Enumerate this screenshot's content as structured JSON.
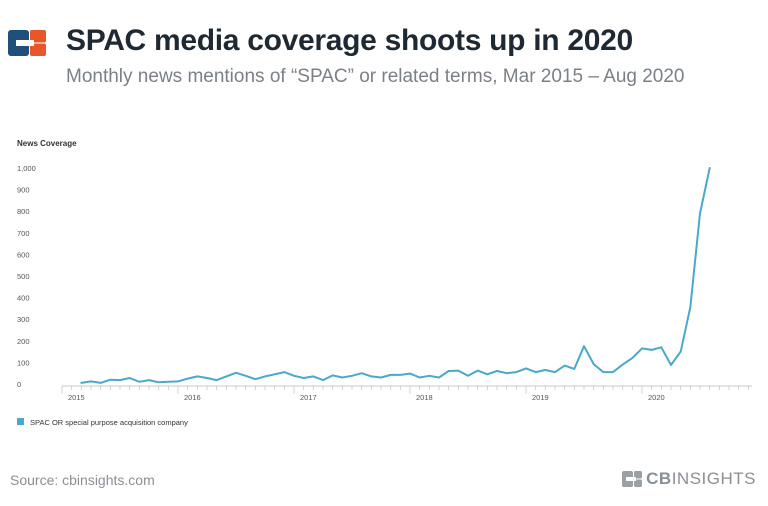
{
  "header": {
    "title": "SPAC media coverage shoots up in 2020",
    "subtitle": "Monthly news mentions of “SPAC” or related terms, Mar 2015 – Aug 2020"
  },
  "colors": {
    "line": "#4aa8c9",
    "title": "#1f2933",
    "muted": "#8a8f96",
    "logo_blue": "#1f4f7a",
    "logo_orange": "#e8572a"
  },
  "chart_data": {
    "type": "line",
    "ylabel": "News Coverage",
    "ylim": [
      0,
      1000
    ],
    "yticks": [
      "0",
      "100",
      "200",
      "300",
      "400",
      "500",
      "600",
      "700",
      "800",
      "900",
      "1,000"
    ],
    "xticks": [
      "2015",
      "2016",
      "2017",
      "2018",
      "2019",
      "2020"
    ],
    "legend": "bottom-left",
    "grid": false,
    "series": [
      {
        "name": "SPAC OR special purpose acquisition company",
        "x": [
          "2015-03",
          "2015-04",
          "2015-05",
          "2015-06",
          "2015-07",
          "2015-08",
          "2015-09",
          "2015-10",
          "2015-11",
          "2015-12",
          "2016-01",
          "2016-02",
          "2016-03",
          "2016-04",
          "2016-05",
          "2016-06",
          "2016-07",
          "2016-08",
          "2016-09",
          "2016-10",
          "2016-11",
          "2016-12",
          "2017-01",
          "2017-02",
          "2017-03",
          "2017-04",
          "2017-05",
          "2017-06",
          "2017-07",
          "2017-08",
          "2017-09",
          "2017-10",
          "2017-11",
          "2017-12",
          "2018-01",
          "2018-02",
          "2018-03",
          "2018-04",
          "2018-05",
          "2018-06",
          "2018-07",
          "2018-08",
          "2018-09",
          "2018-10",
          "2018-11",
          "2018-12",
          "2019-01",
          "2019-02",
          "2019-03",
          "2019-04",
          "2019-05",
          "2019-06",
          "2019-07",
          "2019-08",
          "2019-09",
          "2019-10",
          "2019-11",
          "2019-12",
          "2020-01",
          "2020-02",
          "2020-03",
          "2020-04",
          "2020-05",
          "2020-06",
          "2020-07",
          "2020-08"
        ],
        "values": [
          5,
          12,
          5,
          20,
          18,
          28,
          10,
          18,
          8,
          10,
          12,
          25,
          35,
          28,
          18,
          35,
          52,
          38,
          22,
          35,
          45,
          55,
          38,
          28,
          35,
          18,
          40,
          30,
          38,
          50,
          35,
          30,
          42,
          42,
          48,
          30,
          38,
          30,
          60,
          62,
          38,
          62,
          45,
          60,
          50,
          55,
          72,
          55,
          65,
          55,
          85,
          70,
          175,
          92,
          55,
          55,
          90,
          120,
          165,
          158,
          170,
          88,
          150,
          355,
          790,
          1000
        ]
      }
    ]
  },
  "footer": {
    "source": "Source: cbinsights.com",
    "brand_bold": "CB",
    "brand_rest": "INSIGHTS"
  }
}
